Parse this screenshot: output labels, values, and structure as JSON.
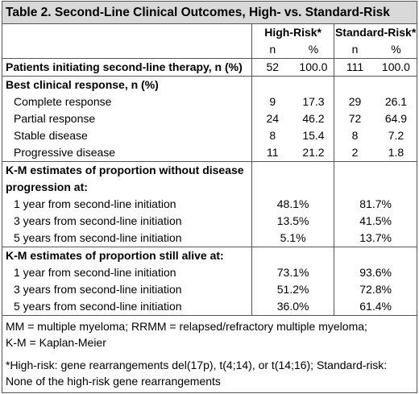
{
  "title": "Table 2. Second-Line Clinical Outcomes, High- vs. Standard-Risk",
  "groups": {
    "high": "High-Risk*",
    "standard": "Standard-Risk*"
  },
  "subheads": {
    "n": "n",
    "pct": "%"
  },
  "patients": {
    "label": "Patients initiating second-line therapy, n (%)",
    "hr_n": "52",
    "hr_pct": "100.0",
    "sr_n": "111",
    "sr_pct": "100.0"
  },
  "response": {
    "label": "Best clinical response, n (%)",
    "rows": [
      {
        "label": "Complete response",
        "hr_n": "9",
        "hr_pct": "17.3",
        "sr_n": "29",
        "sr_pct": "26.1"
      },
      {
        "label": "Partial response",
        "hr_n": "24",
        "hr_pct": "46.2",
        "sr_n": "72",
        "sr_pct": "64.9"
      },
      {
        "label": "Stable disease",
        "hr_n": "8",
        "hr_pct": "15.4",
        "sr_n": "8",
        "sr_pct": "7.2"
      },
      {
        "label": "Progressive disease",
        "hr_n": "11",
        "hr_pct": "21.2",
        "sr_n": "2",
        "sr_pct": "1.8"
      }
    ]
  },
  "pfs": {
    "label_line1": "K-M estimates of proportion without disease",
    "label_line2": "progression at:",
    "rows": [
      {
        "label": "1 year from second-line initiation",
        "hr": "48.1%",
        "sr": "81.7%"
      },
      {
        "label": "3 years from second-line initiation",
        "hr": "13.5%",
        "sr": "41.5%"
      },
      {
        "label": "5 years from second-line initiation",
        "hr": "5.1%",
        "sr": "13.7%"
      }
    ]
  },
  "os": {
    "label": "K-M estimates of proportion still alive at:",
    "rows": [
      {
        "label": "1 year from second-line initiation",
        "hr": "73.1%",
        "sr": "93.6%"
      },
      {
        "label": "3 years from second-line initiation",
        "hr": "51.2%",
        "sr": "72.8%"
      },
      {
        "label": "5 years from second-line initiation",
        "hr": "36.0%",
        "sr": "61.4%"
      }
    ]
  },
  "footnotes": {
    "abbrev_line1": "MM = multiple myeloma; RRMM = relapsed/refractory multiple myeloma;",
    "abbrev_line2": "K-M = Kaplan-Meier",
    "risk_line1": "*High-risk: gene rearrangements del(17p), t(4;14), or t(14;16); Standard-risk:",
    "risk_line2": "None of the high-risk gene rearrangements"
  }
}
